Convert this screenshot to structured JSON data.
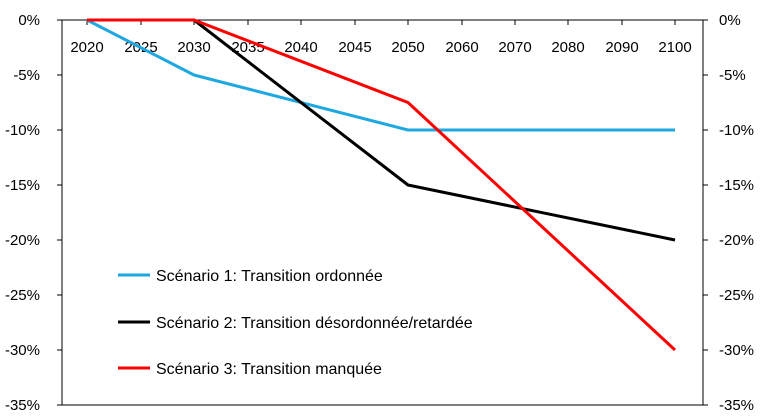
{
  "chart_data": {
    "type": "line",
    "title": "",
    "xlabel": "",
    "ylabel": "",
    "x_categories": [
      "2020",
      "2025",
      "2030",
      "2035",
      "2040",
      "2045",
      "2050",
      "2060",
      "2070",
      "2080",
      "2090",
      "2100"
    ],
    "y_ticks": [
      "0%",
      "-5%",
      "-10%",
      "-15%",
      "-20%",
      "-25%",
      "-30%",
      "-35%"
    ],
    "ylim": [
      -35,
      0
    ],
    "y_unit": "%",
    "grid": false,
    "secondary_y_axis": true,
    "legend_position": "bottom-left inside plot",
    "series": [
      {
        "name": "Scénario 1: Transition ordonnée",
        "color": "#1ea7e0",
        "points": [
          {
            "x": "2020",
            "y": 0
          },
          {
            "x": "2030",
            "y": -5
          },
          {
            "x": "2050",
            "y": -10
          },
          {
            "x": "2100",
            "y": -10
          }
        ]
      },
      {
        "name": "Scénario 2: Transition désordonnée/retardée",
        "color": "#000000",
        "points": [
          {
            "x": "2020",
            "y": 0
          },
          {
            "x": "2030",
            "y": 0
          },
          {
            "x": "2050",
            "y": -15
          },
          {
            "x": "2100",
            "y": -20
          }
        ]
      },
      {
        "name": "Scénario 3: Transition manquée",
        "color": "#ff0000",
        "points": [
          {
            "x": "2020",
            "y": 0
          },
          {
            "x": "2030",
            "y": 0
          },
          {
            "x": "2050",
            "y": -7.5
          },
          {
            "x": "2100",
            "y": -30
          }
        ]
      }
    ]
  }
}
